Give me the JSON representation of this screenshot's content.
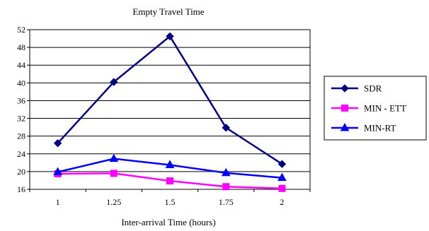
{
  "chart_data": {
    "type": "line",
    "title": "Empty Travel Time",
    "xlabel": "Inter-arrival Time (hours)",
    "ylabel": "",
    "categories": [
      "1",
      "1.25",
      "1.5",
      "1.75",
      "2"
    ],
    "ylim": [
      16,
      52
    ],
    "yticks": [
      16,
      20,
      24,
      28,
      32,
      36,
      40,
      44,
      48,
      52
    ],
    "grid": "horizontal",
    "legend_position": "right",
    "series": [
      {
        "name": "SDR",
        "color": "#000080",
        "marker": "diamond",
        "values": [
          26.4,
          40.2,
          50.5,
          29.9,
          21.7
        ]
      },
      {
        "name": "MIN - ETT",
        "color": "#FF00FF",
        "marker": "square",
        "values": [
          19.5,
          19.6,
          17.9,
          16.6,
          16.2
        ]
      },
      {
        "name": "MIN-RT",
        "color": "#0000FF",
        "marker": "triangle",
        "values": [
          19.9,
          22.9,
          21.5,
          19.7,
          18.6
        ]
      }
    ]
  }
}
